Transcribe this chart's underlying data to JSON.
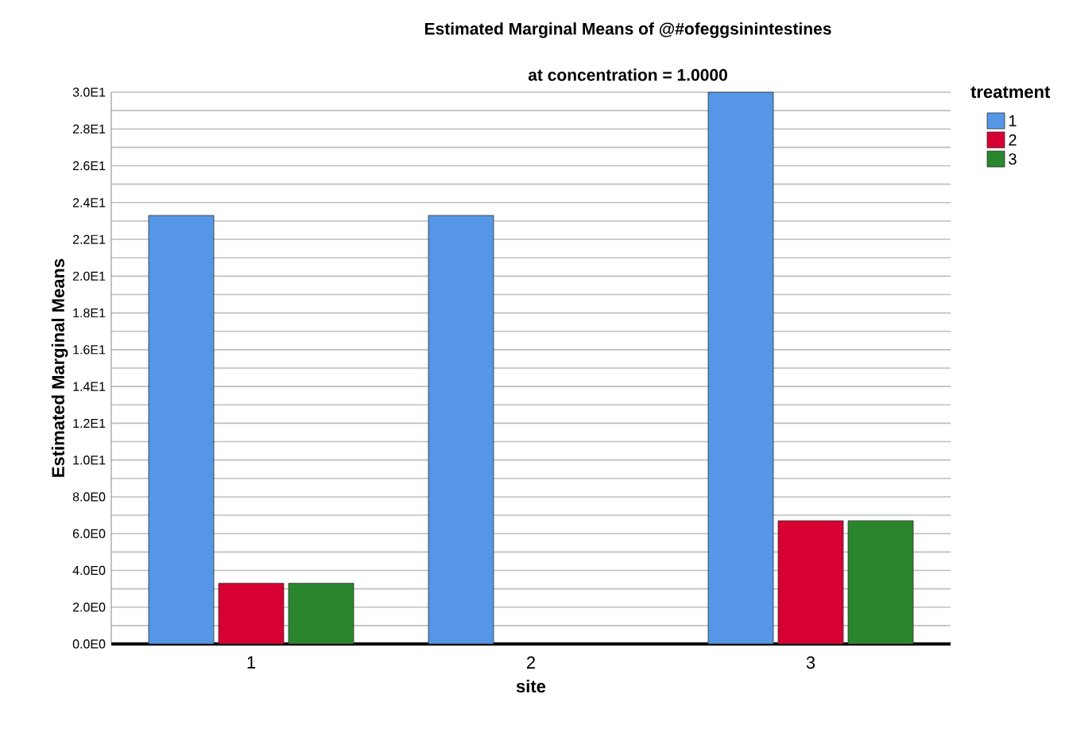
{
  "chart_data": {
    "type": "bar",
    "title": "Estimated Marginal Means of @#ofeggsinintestines",
    "subtitle": "at concentration = 1.0000",
    "xlabel": "site",
    "ylabel": "Estimated Marginal Means",
    "legend_title": "treatment",
    "categories": [
      "1",
      "2",
      "3"
    ],
    "series": [
      {
        "name": "1",
        "color": "#5596e6",
        "values": [
          23.3,
          23.3,
          30
        ]
      },
      {
        "name": "2",
        "color": "#d70033",
        "values": [
          3.3,
          null,
          6.7
        ]
      },
      {
        "name": "3",
        "color": "#2a862d",
        "values": [
          3.3,
          null,
          6.7
        ]
      }
    ],
    "ylim": [
      0,
      30
    ],
    "yticks": [
      {
        "value": 0,
        "label": "0.0E0"
      },
      {
        "value": 1,
        "label": null
      },
      {
        "value": 2,
        "label": "2.0E0"
      },
      {
        "value": 3,
        "label": null
      },
      {
        "value": 4,
        "label": "4.0E0"
      },
      {
        "value": 5,
        "label": null
      },
      {
        "value": 6,
        "label": "6.0E0"
      },
      {
        "value": 7,
        "label": null
      },
      {
        "value": 8,
        "label": "8.0E0"
      },
      {
        "value": 9,
        "label": null
      },
      {
        "value": 10,
        "label": "1.0E1"
      },
      {
        "value": 11,
        "label": null
      },
      {
        "value": 12,
        "label": "1.2E1"
      },
      {
        "value": 13,
        "label": null
      },
      {
        "value": 14,
        "label": "1.4E1"
      },
      {
        "value": 15,
        "label": null
      },
      {
        "value": 16,
        "label": "1.6E1"
      },
      {
        "value": 17,
        "label": null
      },
      {
        "value": 18,
        "label": "1.8E1"
      },
      {
        "value": 19,
        "label": null
      },
      {
        "value": 20,
        "label": "2.0E1"
      },
      {
        "value": 21,
        "label": null
      },
      {
        "value": 22,
        "label": "2.2E1"
      },
      {
        "value": 23,
        "label": null
      },
      {
        "value": 24,
        "label": "2.4E1"
      },
      {
        "value": 25,
        "label": null
      },
      {
        "value": 26,
        "label": "2.6E1"
      },
      {
        "value": 27,
        "label": null
      },
      {
        "value": 28,
        "label": "2.8E1"
      },
      {
        "value": 29,
        "label": null
      },
      {
        "value": 30,
        "label": "3.0E1"
      }
    ],
    "grid": "y",
    "legend": "top right"
  }
}
